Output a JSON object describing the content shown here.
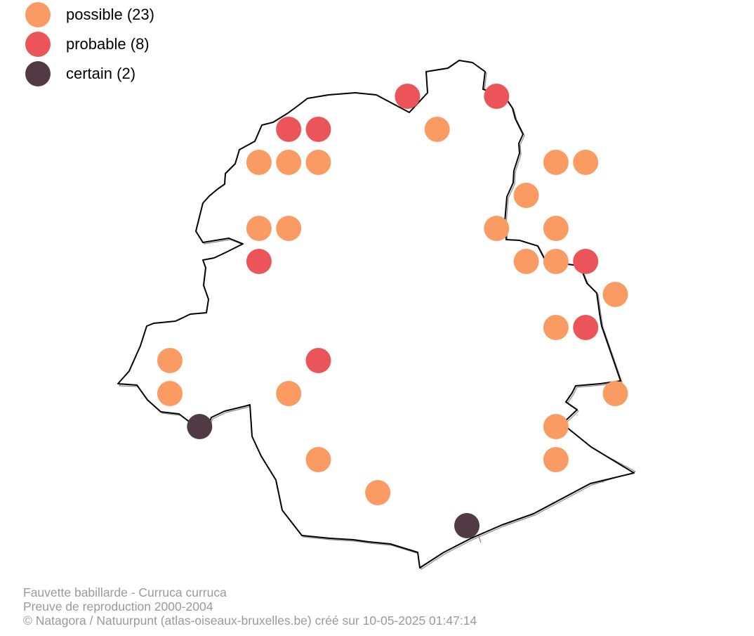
{
  "legend": {
    "items": [
      {
        "key": "possible",
        "label": "possible (23)",
        "color": "#f99b62"
      },
      {
        "key": "probable",
        "label": "probable (8)",
        "color": "#eb5459"
      },
      {
        "key": "certain",
        "label": "certain (2)",
        "color": "#513a44"
      }
    ]
  },
  "credits": {
    "species": "Fauvette babillarde - Curruca curruca",
    "subtitle": "Preuve de reproduction 2000-2004",
    "copyright": "© Natagora / Natuurpunt (atlas-oiseaux-bruxelles.be) créé sur 10-05-2025 01:47:14"
  },
  "map": {
    "colors": {
      "border": "#000000",
      "border_shadow": "#8c8c8c",
      "communes": "#8a857e",
      "fill": "#ffffff"
    },
    "observations": [
      {
        "row": 1,
        "col": 9,
        "status": "probable"
      },
      {
        "row": 1,
        "col": 12,
        "status": "probable"
      },
      {
        "row": 2,
        "col": 5,
        "status": "probable"
      },
      {
        "row": 2,
        "col": 6,
        "status": "probable"
      },
      {
        "row": 2,
        "col": 10,
        "status": "possible"
      },
      {
        "row": 3,
        "col": 4,
        "status": "possible"
      },
      {
        "row": 3,
        "col": 5,
        "status": "possible"
      },
      {
        "row": 3,
        "col": 6,
        "status": "possible"
      },
      {
        "row": 3,
        "col": 14,
        "status": "possible"
      },
      {
        "row": 3,
        "col": 15,
        "status": "possible"
      },
      {
        "row": 4,
        "col": 13,
        "status": "possible"
      },
      {
        "row": 5,
        "col": 4,
        "status": "possible"
      },
      {
        "row": 5,
        "col": 5,
        "status": "possible"
      },
      {
        "row": 5,
        "col": 12,
        "status": "possible"
      },
      {
        "row": 5,
        "col": 14,
        "status": "possible"
      },
      {
        "row": 6,
        "col": 4,
        "status": "probable"
      },
      {
        "row": 6,
        "col": 13,
        "status": "possible"
      },
      {
        "row": 6,
        "col": 14,
        "status": "possible"
      },
      {
        "row": 6,
        "col": 15,
        "status": "probable"
      },
      {
        "row": 7,
        "col": 16,
        "status": "possible"
      },
      {
        "row": 8,
        "col": 14,
        "status": "possible"
      },
      {
        "row": 8,
        "col": 15,
        "status": "probable"
      },
      {
        "row": 9,
        "col": 1,
        "status": "possible"
      },
      {
        "row": 9,
        "col": 6,
        "status": "probable"
      },
      {
        "row": 10,
        "col": 1,
        "status": "possible"
      },
      {
        "row": 10,
        "col": 5,
        "status": "possible"
      },
      {
        "row": 10,
        "col": 16,
        "status": "possible"
      },
      {
        "row": 11,
        "col": 2,
        "status": "certain"
      },
      {
        "row": 11,
        "col": 14,
        "status": "possible"
      },
      {
        "row": 12,
        "col": 6,
        "status": "possible"
      },
      {
        "row": 12,
        "col": 14,
        "status": "possible"
      },
      {
        "row": 13,
        "col": 8,
        "status": "possible"
      },
      {
        "row": 14,
        "col": 11,
        "status": "certain"
      }
    ]
  }
}
